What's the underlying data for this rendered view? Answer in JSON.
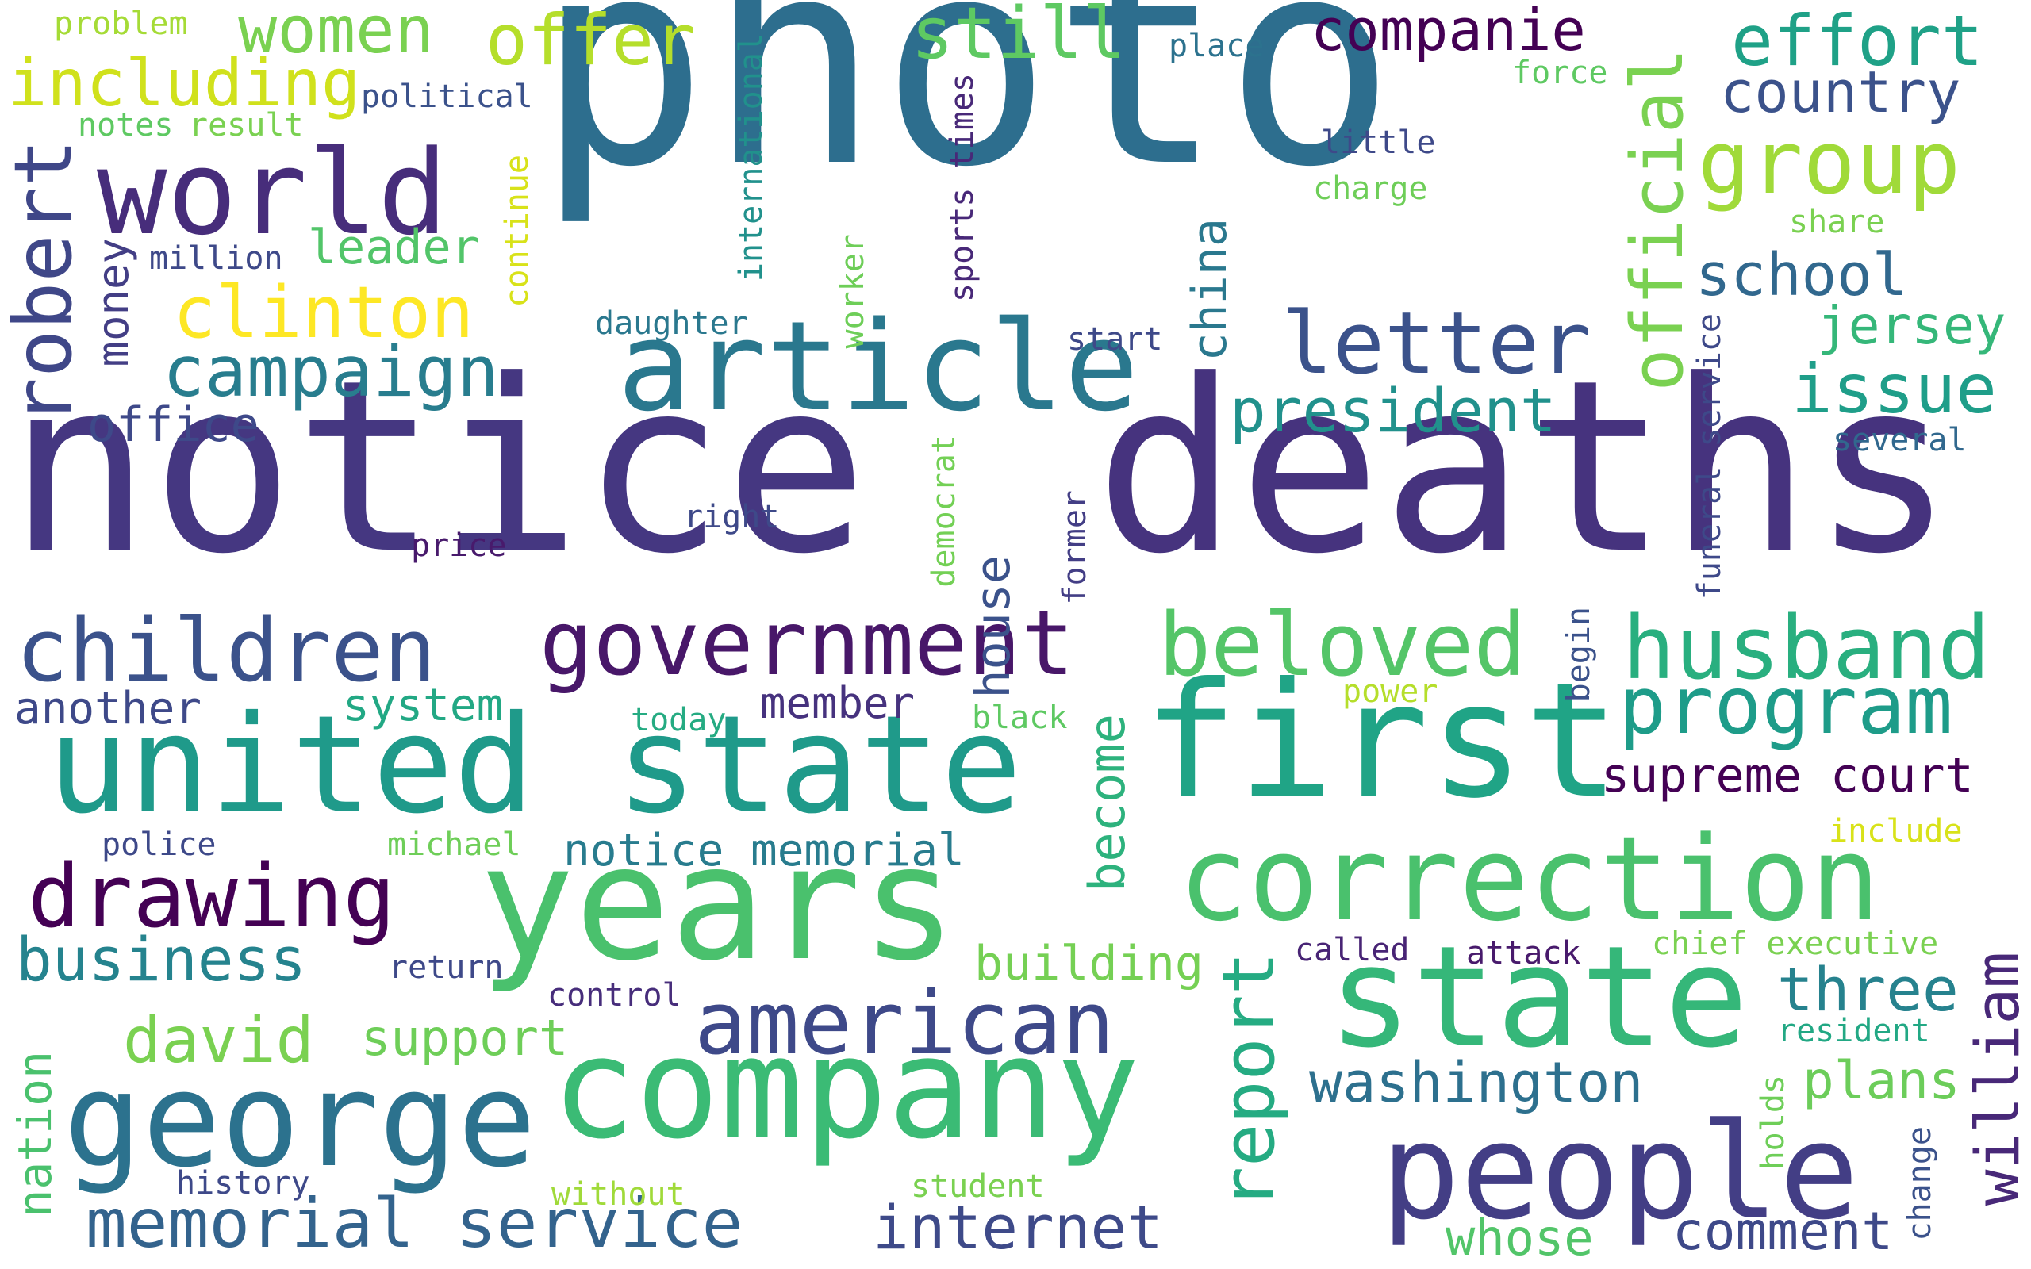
{
  "words": [
    {
      "text": "photo",
      "color": "#2d6e8e"
    },
    {
      "text": "notice",
      "color": "#453781"
    },
    {
      "text": "deaths",
      "color": "#46337e"
    },
    {
      "text": "article",
      "color": "#2a788e"
    },
    {
      "text": "years",
      "color": "#4ac16d"
    },
    {
      "text": "first",
      "color": "#20a486"
    },
    {
      "text": "united state",
      "color": "#1f9a8a"
    },
    {
      "text": "company",
      "color": "#3bbb75"
    },
    {
      "text": "correction",
      "color": "#4ac16d"
    },
    {
      "text": "state",
      "color": "#35b779"
    },
    {
      "text": "people",
      "color": "#433e85"
    },
    {
      "text": "george",
      "color": "#2c728e"
    },
    {
      "text": "government",
      "color": "#481769"
    },
    {
      "text": "world",
      "color": "#472d7b"
    },
    {
      "text": "husband",
      "color": "#29af7f"
    },
    {
      "text": "beloved",
      "color": "#54c568"
    },
    {
      "text": "children",
      "color": "#3b528b"
    },
    {
      "text": "drawing",
      "color": "#440154"
    },
    {
      "text": "american",
      "color": "#3e4989"
    },
    {
      "text": "program",
      "color": "#1e9c89"
    },
    {
      "text": "letter",
      "color": "#3b528b"
    },
    {
      "text": "group",
      "color": "#a0da39"
    },
    {
      "text": "official",
      "color": "#7ad151"
    },
    {
      "text": "robert",
      "color": "#3f4788"
    },
    {
      "text": "clinton",
      "color": "#fde725"
    },
    {
      "text": "campaign",
      "color": "#287d8e"
    },
    {
      "text": "memorial service",
      "color": "#33638d"
    },
    {
      "text": "offer",
      "color": "#b5de2b"
    },
    {
      "text": "women",
      "color": "#7ad151"
    },
    {
      "text": "including",
      "color": "#d0e11c"
    },
    {
      "text": "still",
      "color": "#5ec962"
    },
    {
      "text": "companie",
      "color": "#440154"
    },
    {
      "text": "effort",
      "color": "#1fa187"
    },
    {
      "text": "country",
      "color": "#3b528b"
    },
    {
      "text": "school",
      "color": "#31688e"
    },
    {
      "text": "issue",
      "color": "#1f9e89"
    },
    {
      "text": "jersey",
      "color": "#35b779"
    },
    {
      "text": "president",
      "color": "#21918c"
    },
    {
      "text": "report",
      "color": "#25ab82"
    },
    {
      "text": "washington",
      "color": "#2d708e"
    },
    {
      "text": "internet",
      "color": "#3e4a89"
    },
    {
      "text": "william",
      "color": "#482878"
    },
    {
      "text": "three",
      "color": "#26828e"
    },
    {
      "text": "plans",
      "color": "#6ccd5a"
    },
    {
      "text": "comment",
      "color": "#3e4989"
    },
    {
      "text": "whose",
      "color": "#52c569"
    },
    {
      "text": "business",
      "color": "#25838e"
    },
    {
      "text": "david",
      "color": "#7ad151"
    },
    {
      "text": "support",
      "color": "#6ece58"
    },
    {
      "text": "building",
      "color": "#75d054"
    },
    {
      "text": "become",
      "color": "#2db27d"
    },
    {
      "text": "house",
      "color": "#3b528b"
    },
    {
      "text": "china",
      "color": "#2a788e"
    },
    {
      "text": "supreme court",
      "color": "#440154"
    },
    {
      "text": "notice memorial",
      "color": "#287c8e"
    },
    {
      "text": "another",
      "color": "#3e4989"
    },
    {
      "text": "system",
      "color": "#22a884"
    },
    {
      "text": "member",
      "color": "#46327e"
    },
    {
      "text": "office",
      "color": "#3e4989"
    },
    {
      "text": "money",
      "color": "#433e85"
    },
    {
      "text": "leader",
      "color": "#52c569"
    },
    {
      "text": "million",
      "color": "#3e4989"
    },
    {
      "text": "political",
      "color": "#3b528b"
    },
    {
      "text": "result",
      "color": "#7ad151"
    },
    {
      "text": "notes",
      "color": "#5ec962"
    },
    {
      "text": "problem",
      "color": "#a5db36"
    },
    {
      "text": "continue",
      "color": "#d8e219"
    },
    {
      "text": "international",
      "color": "#21918c"
    },
    {
      "text": "worker",
      "color": "#6ece58"
    },
    {
      "text": "daughter",
      "color": "#2a788e"
    },
    {
      "text": "sports times",
      "color": "#482878"
    },
    {
      "text": "start",
      "color": "#3e4989"
    },
    {
      "text": "place",
      "color": "#2c728e"
    },
    {
      "text": "force",
      "color": "#5ec962"
    },
    {
      "text": "little",
      "color": "#3e4989"
    },
    {
      "text": "charge",
      "color": "#6ece58"
    },
    {
      "text": "share",
      "color": "#7ad151"
    },
    {
      "text": "several",
      "color": "#31688e"
    },
    {
      "text": "funeral service",
      "color": "#3e4989"
    },
    {
      "text": "begin",
      "color": "#3b528b"
    },
    {
      "text": "power",
      "color": "#b5de2b"
    },
    {
      "text": "right",
      "color": "#3e4989"
    },
    {
      "text": "price",
      "color": "#481a6c"
    },
    {
      "text": "democrat",
      "color": "#73d055"
    },
    {
      "text": "former",
      "color": "#433e85"
    },
    {
      "text": "today",
      "color": "#25ab82"
    },
    {
      "text": "black",
      "color": "#5ec962"
    },
    {
      "text": "police",
      "color": "#3e4989"
    },
    {
      "text": "michael",
      "color": "#6ece58"
    },
    {
      "text": "return",
      "color": "#3e4989"
    },
    {
      "text": "control",
      "color": "#472d7b"
    },
    {
      "text": "called",
      "color": "#482475"
    },
    {
      "text": "attack",
      "color": "#481a6c"
    },
    {
      "text": "include",
      "color": "#d8e219"
    },
    {
      "text": "chief executive",
      "color": "#7ad151"
    },
    {
      "text": "resident",
      "color": "#22a884"
    },
    {
      "text": "holds",
      "color": "#6ece58"
    },
    {
      "text": "change",
      "color": "#3b528b"
    },
    {
      "text": "nation",
      "color": "#4ac16d"
    },
    {
      "text": "history",
      "color": "#3e4989"
    },
    {
      "text": "without",
      "color": "#a0da39"
    },
    {
      "text": "student",
      "color": "#7ad151"
    }
  ]
}
